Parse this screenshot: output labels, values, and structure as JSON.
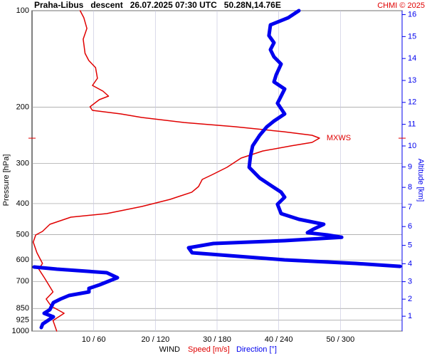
{
  "chart_data": {
    "type": "line",
    "title": "Praha-Libus   descent   26.07.2025 07:30 UTC   50.28N,14.76E",
    "credit": "CHMI © 2025",
    "ylabel": "Pressure [hPa]",
    "y2label": "Altitude [km]",
    "xlabel": "WIND",
    "ylim": [
      100,
      1000
    ],
    "ylog": true,
    "yticks": [
      100,
      200,
      300,
      400,
      500,
      600,
      700,
      850,
      925,
      1000
    ],
    "xlim": [
      0,
      60
    ],
    "x2lim": [
      0,
      360
    ],
    "xticks": [
      {
        "value": 10,
        "label": "10 / 60"
      },
      {
        "value": 20,
        "label": "20 / 120"
      },
      {
        "value": 30,
        "label": "30 / 180"
      },
      {
        "value": 40,
        "label": "40 / 240"
      },
      {
        "value": 50,
        "label": "50 / 300"
      }
    ],
    "y2ticks": [
      1,
      2,
      3,
      4,
      5,
      6,
      7,
      8,
      9,
      10,
      11,
      12,
      13,
      14,
      15,
      16
    ],
    "grid": true,
    "annotation": {
      "label": "MXWS",
      "pressure": 250
    },
    "series": [
      {
        "name": "Speed [m/s]",
        "color": "#e00000",
        "axis": "x",
        "pressure": [
          100,
          105.2,
          113.6,
          122.7,
          135.9,
          143.0,
          150.6,
          162.6,
          171.1,
          178.3,
          184.8,
          189.6,
          199.5,
          204.7,
          210.0,
          215.4,
          223.4,
          230.2,
          238.7,
          244.9,
          249.9,
          257.7,
          264.3,
          274.1,
          288.4,
          308.3,
          324.5,
          336.3,
          353.9,
          368.6,
          388.1,
          408.5,
          429.9,
          441.0,
          464.2,
          488.6,
          501.2,
          527.5,
          569.6,
          615.0,
          640.7,
          681.3,
          754.8,
          794.3,
          836.2,
          880.0,
          926.4,
          1000
        ],
        "values": [
          7.8,
          8.4,
          8.9,
          8.3,
          8.6,
          9.2,
          10.3,
          10.6,
          9.8,
          11.5,
          12.4,
          10.9,
          9.4,
          9.8,
          14.4,
          17.8,
          24.7,
          32.8,
          40.8,
          45.4,
          46.6,
          45.4,
          42.0,
          37.4,
          33.9,
          31.6,
          29.3,
          27.6,
          27.0,
          25.9,
          22.4,
          17.8,
          12.1,
          6.3,
          2.9,
          1.7,
          0.6,
          0.2,
          0.8,
          1.7,
          1.1,
          2.0,
          3.4,
          2.3,
          3.1,
          5.2,
          3.4,
          4.0
        ]
      },
      {
        "name": "Direction [°]",
        "color": "#0000ee",
        "axis": "x2",
        "pressure": [
          100,
          105.2,
          110.8,
          119.6,
          125.9,
          132.4,
          139.4,
          146.8,
          158.5,
          166.8,
          175.6,
          184.8,
          194.5,
          210.0,
          221.0,
          230.2,
          244.9,
          264.3,
          285.1,
          308.3,
          332.9,
          350.5,
          368.6,
          382.1,
          402.0,
          429.9,
          447.9,
          464.2,
          481.1,
          493.0,
          501.2,
          509.4,
          522.2,
          532.9,
          549.5,
          569.6,
          599.5,
          615.0,
          627.9,
          629.0,
          631.0,
          640.7,
          657.4,
          681.3,
          717.1,
          735.6,
          754.8,
          774.3,
          794.3,
          815.1,
          857.7,
          880.0,
          902.9,
          950.2,
          974.7
        ],
        "values": [
          259.6,
          249.2,
          231.9,
          230.5,
          235.4,
          231.9,
          235.4,
          242.3,
          237.5,
          235.4,
          245.8,
          242.3,
          238.8,
          245.8,
          235.4,
          228.5,
          221.5,
          214.6,
          212.5,
          211.2,
          221.5,
          231.9,
          242.3,
          245.8,
          238.8,
          242.3,
          259.6,
          283.8,
          273.5,
          267.9,
          287.3,
          301.2,
          245.8,
          176.5,
          152.3,
          155.8,
          245.8,
          315.0,
          358,
          null,
          2.1,
          24.2,
          72.7,
          83.1,
          65.8,
          55.4,
          55.4,
          36.0,
          27.7,
          20.8,
          17.3,
          11.8,
          20.8,
          10.4,
          9.0
        ]
      }
    ]
  }
}
